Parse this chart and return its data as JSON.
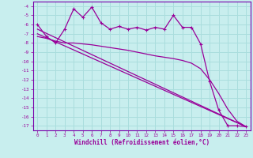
{
  "xlabel": "Windchill (Refroidissement éolien,°C)",
  "bg_color": "#c8eeee",
  "grid_color": "#aadddd",
  "line_color": "#990099",
  "spine_color": "#7700aa",
  "xlim": [
    -0.5,
    23.5
  ],
  "ylim": [
    -17.5,
    -3.5
  ],
  "xticks": [
    0,
    1,
    2,
    3,
    4,
    5,
    6,
    7,
    8,
    9,
    10,
    11,
    12,
    13,
    14,
    15,
    16,
    17,
    18,
    19,
    20,
    21,
    22,
    23
  ],
  "yticks": [
    -4,
    -5,
    -6,
    -7,
    -8,
    -9,
    -10,
    -11,
    -12,
    -13,
    -14,
    -15,
    -16,
    -17
  ],
  "line1_x": [
    0,
    1,
    2,
    3,
    4,
    5,
    6,
    7,
    8,
    9,
    10,
    11,
    12,
    13,
    14,
    15,
    16,
    17,
    18,
    19,
    20,
    21,
    22,
    23
  ],
  "line1_y": [
    -6.0,
    -7.3,
    -8.0,
    -6.5,
    -4.3,
    -5.2,
    -4.1,
    -5.8,
    -6.5,
    -6.2,
    -6.5,
    -6.3,
    -6.6,
    -6.3,
    -6.5,
    -5.0,
    -6.3,
    -6.3,
    -8.1,
    -12.2,
    -15.3,
    -17.0,
    -17.0,
    -17.1
  ],
  "line2_x": [
    0,
    23
  ],
  "line2_y": [
    -6.5,
    -17.1
  ],
  "line3_x": [
    0,
    23
  ],
  "line3_y": [
    -7.0,
    -17.1
  ],
  "line4_x": [
    0,
    1,
    2,
    3,
    4,
    5,
    6,
    7,
    8,
    9,
    10,
    11,
    12,
    13,
    14,
    15,
    16,
    17,
    18,
    19,
    20,
    21,
    22,
    23
  ],
  "line4_y": [
    -7.3,
    -7.5,
    -7.8,
    -8.0,
    -8.0,
    -8.1,
    -8.2,
    -8.35,
    -8.5,
    -8.65,
    -8.8,
    -9.0,
    -9.2,
    -9.4,
    -9.55,
    -9.7,
    -9.9,
    -10.2,
    -10.8,
    -12.0,
    -13.5,
    -15.2,
    -16.5,
    -17.1
  ]
}
